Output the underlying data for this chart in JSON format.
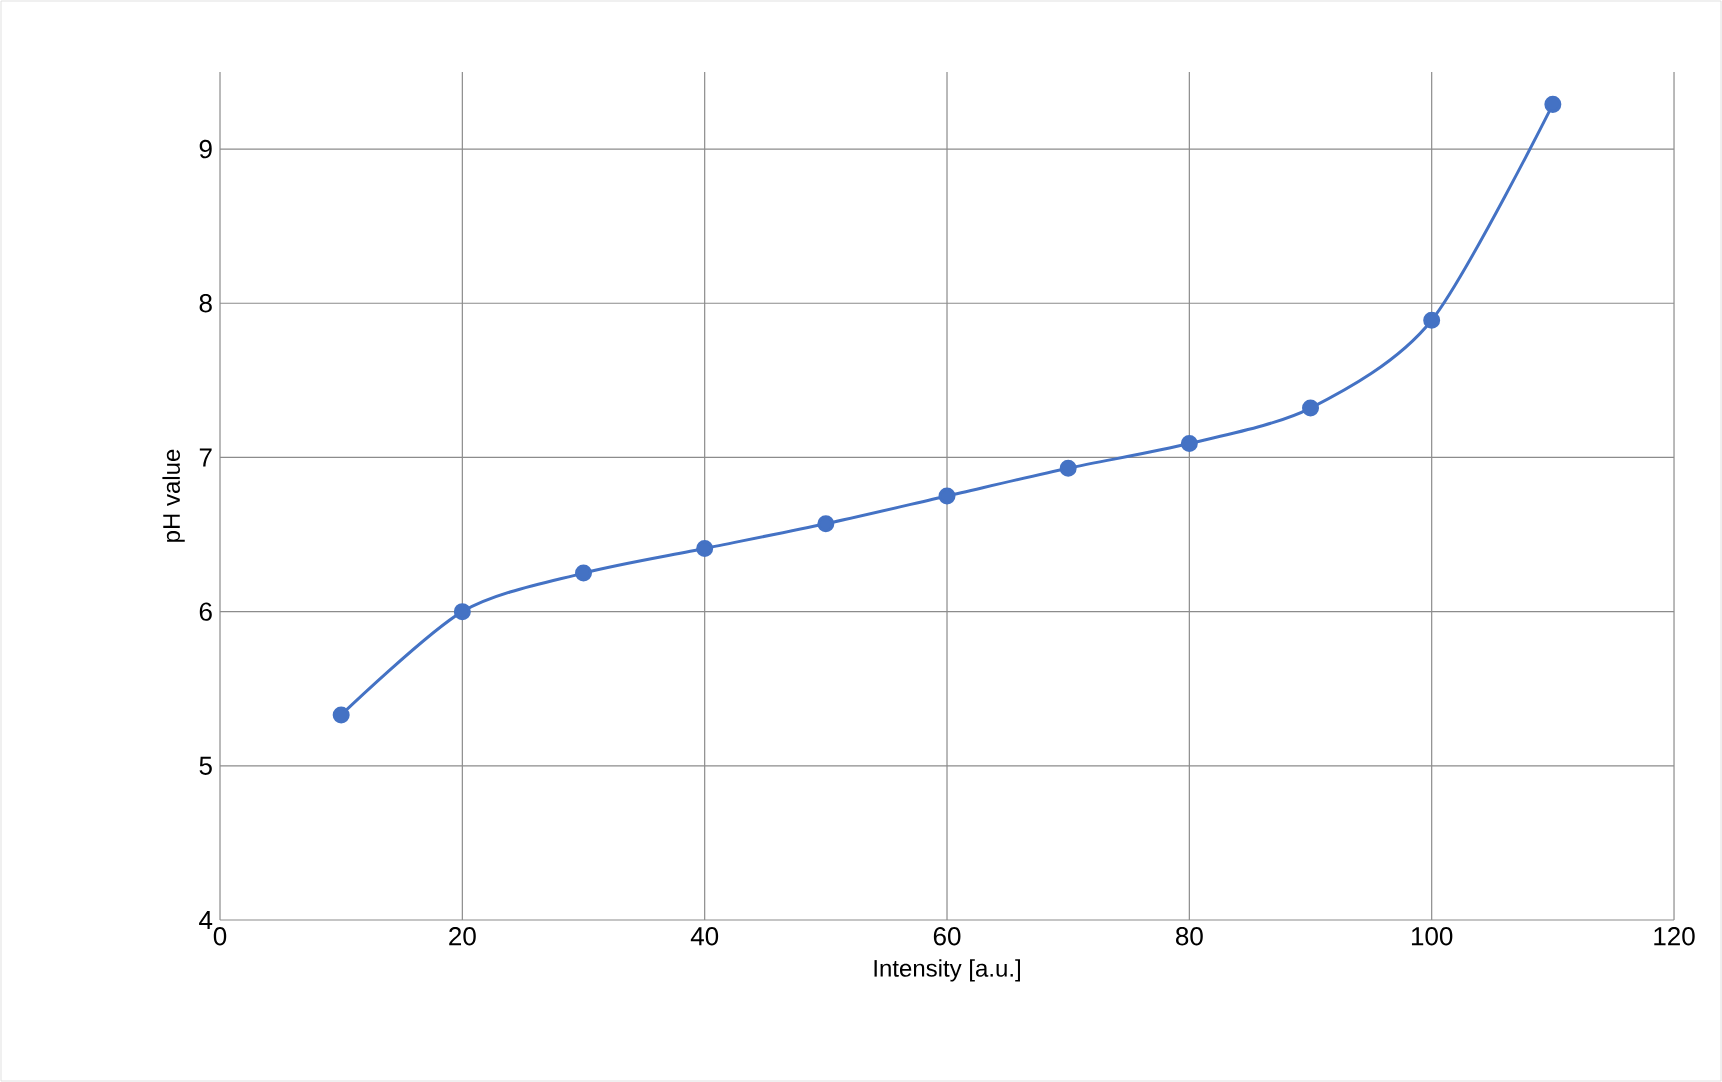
{
  "chart_data": {
    "type": "line",
    "xlabel": "Intensity [a.u.]",
    "ylabel": "pH value",
    "x": [
      10,
      20,
      30,
      40,
      50,
      60,
      70,
      80,
      90,
      100,
      110
    ],
    "series": [
      {
        "color": "#4472c4",
        "values": [
          5.33,
          6.0,
          6.25,
          6.41,
          6.57,
          6.75,
          6.93,
          7.09,
          7.32,
          7.89,
          9.29
        ]
      }
    ],
    "xlim": [
      0,
      120
    ],
    "ylim": [
      4,
      9.5
    ],
    "xticks": [
      0,
      20,
      40,
      60,
      80,
      100,
      120
    ],
    "yticks": [
      4,
      5,
      6,
      7,
      8,
      9
    ],
    "grid": true,
    "marker": "circle",
    "line_style": "solid"
  }
}
